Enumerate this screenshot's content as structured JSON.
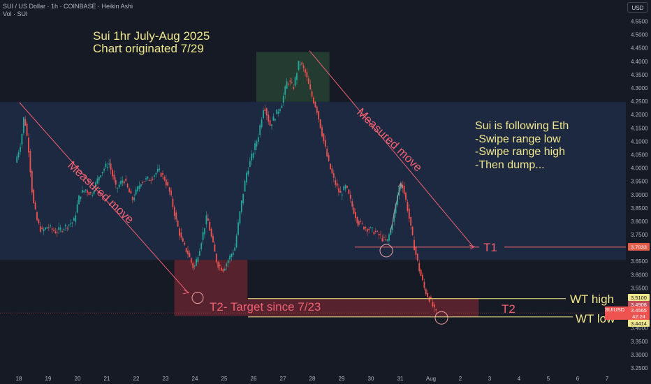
{
  "header": {
    "symbol_line": "SUI / US Dollar · 1h · COINBASE · Heikin Ashi",
    "volume_line": "Vol · SUI"
  },
  "currency_button": "USD",
  "colors": {
    "background": "#161a25",
    "up": "#26a69a",
    "down": "#ef5350",
    "range_band": "#1e2b45",
    "target_zone": "#8b2a36",
    "top_zone": "#2a4a36",
    "annotation_yellow": "#f0e68c",
    "annotation_red": "#f06070",
    "text": "#b2b5be"
  },
  "annotations": {
    "title_line1": "Sui 1hr July-Aug 2025",
    "title_line2": "Chart originated 7/29",
    "note_line1": "Sui is following Eth",
    "note_line2": "-Swipe range low",
    "note_line3": "-Swipe range high",
    "note_line4": "-Then dump...",
    "measured_move_left": "Measured move",
    "measured_move_right": "Measured move",
    "t1": "T1",
    "t2": "T2",
    "t2_target": "T2- Target since 7/23",
    "wt_high": "WT high",
    "wt_low": "WT low"
  },
  "price_labels": {
    "t1_price": "3.7033",
    "wt_high_price": "3.5100",
    "p_3_4908": "3.4908",
    "ticker_tag": "SUIUSD",
    "last_price": "3.4565",
    "countdown": "42:24",
    "wt_low_price": "3.4414"
  },
  "chart_data": {
    "type": "candlestick",
    "chart_style": "Heikin Ashi",
    "timeframe": "1h",
    "y_axis": {
      "scale": "linear",
      "range": [
        3.2,
        4.6
      ],
      "ticks": [
        "4.5500",
        "4.5000",
        "4.4500",
        "4.4000",
        "4.3500",
        "4.3000",
        "4.2500",
        "4.2000",
        "4.1500",
        "4.1000",
        "4.0500",
        "4.0000",
        "3.9500",
        "3.9000",
        "3.8500",
        "3.8000",
        "3.7500",
        "3.7000",
        "3.6500",
        "3.6000",
        "3.5500",
        "3.5000",
        "3.4500",
        "3.4000",
        "3.3500",
        "3.3000",
        "3.2500"
      ]
    },
    "x_axis": {
      "ticks": [
        "18",
        "19",
        "20",
        "21",
        "22",
        "23",
        "24",
        "25",
        "26",
        "27",
        "28",
        "29",
        "30",
        "31",
        "Aug",
        "2",
        "3",
        "4",
        "5",
        "6",
        "7"
      ]
    },
    "grid": false,
    "path": [
      {
        "d": "17.9",
        "p": 4.02
      },
      {
        "d": "18.1",
        "p": 4.1
      },
      {
        "d": "18.2",
        "p": 4.2
      },
      {
        "d": "18.35",
        "p": 4.08
      },
      {
        "d": "18.5",
        "p": 3.88
      },
      {
        "d": "18.65",
        "p": 3.8
      },
      {
        "d": "18.8",
        "p": 3.76
      },
      {
        "d": "19.0",
        "p": 3.78
      },
      {
        "d": "19.3",
        "p": 3.76
      },
      {
        "d": "19.6",
        "p": 3.78
      },
      {
        "d": "19.9",
        "p": 3.8
      },
      {
        "d": "20.1",
        "p": 3.9
      },
      {
        "d": "20.3",
        "p": 3.92
      },
      {
        "d": "20.5",
        "p": 3.9
      },
      {
        "d": "20.8",
        "p": 3.98
      },
      {
        "d": "21.1",
        "p": 4.02
      },
      {
        "d": "21.35",
        "p": 3.92
      },
      {
        "d": "21.6",
        "p": 3.96
      },
      {
        "d": "21.9",
        "p": 3.88
      },
      {
        "d": "22.2",
        "p": 3.95
      },
      {
        "d": "22.5",
        "p": 3.96
      },
      {
        "d": "22.8",
        "p": 3.99
      },
      {
        "d": "23.0",
        "p": 3.96
      },
      {
        "d": "23.2",
        "p": 3.9
      },
      {
        "d": "23.4",
        "p": 3.8
      },
      {
        "d": "23.6",
        "p": 3.72
      },
      {
        "d": "23.8",
        "p": 3.68
      },
      {
        "d": "24.0",
        "p": 3.62
      },
      {
        "d": "24.2",
        "p": 3.7
      },
      {
        "d": "24.45",
        "p": 3.82
      },
      {
        "d": "24.6",
        "p": 3.74
      },
      {
        "d": "24.8",
        "p": 3.64
      },
      {
        "d": "25.0",
        "p": 3.62
      },
      {
        "d": "25.2",
        "p": 3.66
      },
      {
        "d": "25.4",
        "p": 3.7
      },
      {
        "d": "25.6",
        "p": 3.85
      },
      {
        "d": "25.8",
        "p": 3.98
      },
      {
        "d": "26.0",
        "p": 4.05
      },
      {
        "d": "26.2",
        "p": 4.12
      },
      {
        "d": "26.4",
        "p": 4.24
      },
      {
        "d": "26.6",
        "p": 4.16
      },
      {
        "d": "26.8",
        "p": 4.2
      },
      {
        "d": "27.0",
        "p": 4.24
      },
      {
        "d": "27.2",
        "p": 4.33
      },
      {
        "d": "27.4",
        "p": 4.3
      },
      {
        "d": "27.6",
        "p": 4.4
      },
      {
        "d": "27.8",
        "p": 4.36
      },
      {
        "d": "28.0",
        "p": 4.28
      },
      {
        "d": "28.2",
        "p": 4.22
      },
      {
        "d": "28.4",
        "p": 4.12
      },
      {
        "d": "28.6",
        "p": 4.02
      },
      {
        "d": "28.8",
        "p": 3.95
      },
      {
        "d": "29.0",
        "p": 3.9
      },
      {
        "d": "29.2",
        "p": 3.93
      },
      {
        "d": "29.4",
        "p": 3.86
      },
      {
        "d": "29.6",
        "p": 3.8
      },
      {
        "d": "29.8",
        "p": 3.78
      },
      {
        "d": "30.0",
        "p": 3.77
      },
      {
        "d": "30.2",
        "p": 3.76
      },
      {
        "d": "30.4",
        "p": 3.74
      },
      {
        "d": "30.6",
        "p": 3.72
      },
      {
        "d": "30.8",
        "p": 3.8
      },
      {
        "d": "31.0",
        "p": 3.92
      },
      {
        "d": "31.1",
        "p": 3.95
      },
      {
        "d": "31.3",
        "p": 3.85
      },
      {
        "d": "31.5",
        "p": 3.72
      },
      {
        "d": "31.7",
        "p": 3.62
      },
      {
        "d": "31.9",
        "p": 3.54
      },
      {
        "d": "32.1",
        "p": 3.5
      },
      {
        "d": "32.25",
        "p": 3.456
      }
    ],
    "zones": [
      {
        "type": "range_band",
        "y0": 3.655,
        "y1": 4.248
      },
      {
        "type": "target_zone",
        "x0": "23.3",
        "x1": "25.8",
        "y0": 3.445,
        "y1": 3.655
      },
      {
        "type": "target_band",
        "x0": "25.8",
        "x1": "33.7",
        "y0": 3.443,
        "y1": 3.512
      },
      {
        "type": "top_zone",
        "x0": "26.1",
        "x1": "28.6",
        "y0": 4.248,
        "y1": 4.435
      }
    ],
    "levels": [
      {
        "name": "T1",
        "value": 3.7033
      },
      {
        "name": "WT high",
        "value": 3.51
      },
      {
        "name": "WT low",
        "value": 3.4414
      },
      {
        "name": "last",
        "value": 3.4565
      }
    ]
  }
}
